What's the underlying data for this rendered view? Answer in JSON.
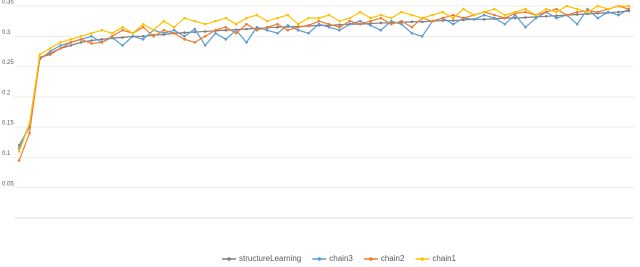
{
  "chart_data": {
    "type": "line",
    "categories": [
      null,
      null,
      null,
      null,
      null,
      null,
      null,
      null,
      null,
      null,
      null,
      null,
      null,
      null,
      null,
      null,
      null,
      null,
      null,
      null,
      null,
      null,
      null,
      null,
      null,
      null,
      null,
      null,
      null,
      null,
      null,
      null,
      null,
      null,
      null,
      null,
      null,
      null,
      null,
      null,
      null,
      null,
      null,
      null,
      null,
      null,
      null,
      null,
      null,
      null,
      null,
      null,
      null,
      null,
      null,
      null,
      null,
      null,
      null,
      null
    ],
    "series": [
      {
        "name": "structureLearning",
        "color": "#7f7f7f",
        "values": [
          0.12,
          0.15,
          0.265,
          0.27,
          0.28,
          0.285,
          0.29,
          0.293,
          0.295,
          0.297,
          0.298,
          0.3,
          0.3,
          0.302,
          0.303,
          0.305,
          0.306,
          0.307,
          0.308,
          0.309,
          0.31,
          0.311,
          0.312,
          0.313,
          0.314,
          0.315,
          0.316,
          0.316,
          0.317,
          0.318,
          0.318,
          0.319,
          0.32,
          0.32,
          0.321,
          0.322,
          0.322,
          0.323,
          0.324,
          0.324,
          0.325,
          0.326,
          0.326,
          0.327,
          0.328,
          0.328,
          0.329,
          0.33,
          0.33,
          0.331,
          0.332,
          0.333,
          0.334,
          0.335,
          0.336,
          0.337,
          0.338,
          0.339,
          0.34,
          0.342
        ]
      },
      {
        "name": "chain3",
        "color": "#5b9bd5",
        "values": [
          0.115,
          0.155,
          0.262,
          0.275,
          0.285,
          0.29,
          0.295,
          0.3,
          0.29,
          0.298,
          0.285,
          0.3,
          0.295,
          0.31,
          0.305,
          0.31,
          0.3,
          0.312,
          0.285,
          0.305,
          0.295,
          0.31,
          0.29,
          0.315,
          0.31,
          0.305,
          0.318,
          0.31,
          0.305,
          0.32,
          0.315,
          0.31,
          0.32,
          0.325,
          0.318,
          0.31,
          0.325,
          0.32,
          0.305,
          0.3,
          0.325,
          0.33,
          0.32,
          0.33,
          0.328,
          0.335,
          0.33,
          0.32,
          0.335,
          0.315,
          0.33,
          0.34,
          0.33,
          0.335,
          0.32,
          0.345,
          0.33,
          0.34,
          0.335,
          0.345
        ]
      },
      {
        "name": "chain2",
        "color": "#ed7d31",
        "values": [
          0.095,
          0.14,
          0.265,
          0.272,
          0.28,
          0.29,
          0.295,
          0.288,
          0.29,
          0.3,
          0.31,
          0.305,
          0.315,
          0.3,
          0.31,
          0.305,
          0.295,
          0.29,
          0.3,
          0.31,
          0.315,
          0.305,
          0.32,
          0.31,
          0.315,
          0.32,
          0.31,
          0.315,
          0.318,
          0.325,
          0.32,
          0.315,
          0.325,
          0.32,
          0.325,
          0.33,
          0.32,
          0.325,
          0.315,
          0.33,
          0.325,
          0.33,
          0.335,
          0.33,
          0.335,
          0.34,
          0.335,
          0.33,
          0.338,
          0.34,
          0.335,
          0.34,
          0.345,
          0.335,
          0.34,
          0.342,
          0.34,
          0.345,
          0.35,
          0.345
        ]
      },
      {
        "name": "chain1",
        "color": "#ffc000",
        "values": [
          0.11,
          0.155,
          0.27,
          0.28,
          0.29,
          0.295,
          0.3,
          0.305,
          0.31,
          0.305,
          0.315,
          0.305,
          0.32,
          0.31,
          0.325,
          0.315,
          0.33,
          0.325,
          0.32,
          0.325,
          0.33,
          0.32,
          0.33,
          0.335,
          0.325,
          0.33,
          0.335,
          0.32,
          0.33,
          0.33,
          0.335,
          0.325,
          0.33,
          0.34,
          0.33,
          0.335,
          0.33,
          0.34,
          0.335,
          0.33,
          0.335,
          0.34,
          0.33,
          0.345,
          0.335,
          0.34,
          0.345,
          0.335,
          0.34,
          0.345,
          0.335,
          0.345,
          0.34,
          0.35,
          0.345,
          0.34,
          0.35,
          0.345,
          0.35,
          0.35
        ]
      }
    ],
    "ylim": [
      0,
      0.35
    ],
    "yticks": [
      0.05,
      0.1,
      0.15,
      0.2,
      0.25,
      0.3,
      0.35
    ],
    "grid": true,
    "legend": "bottom"
  }
}
